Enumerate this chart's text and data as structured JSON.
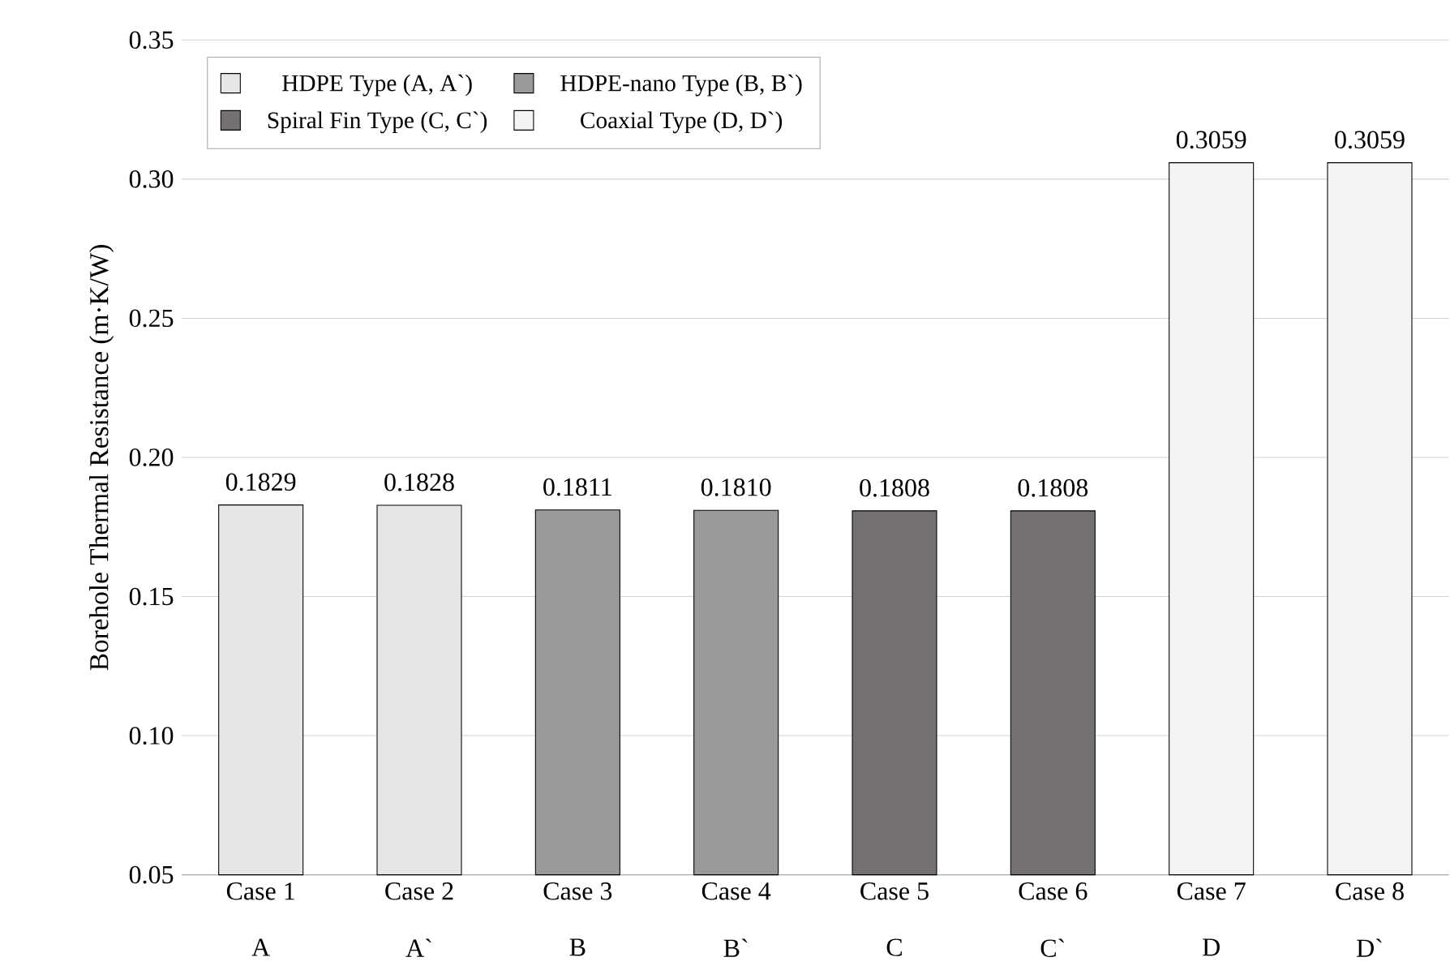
{
  "chart_data": {
    "type": "bar",
    "ylabel": "Borehole Thermal Resistance (m·K/W)",
    "categories": [
      "Case 1",
      "Case 2",
      "Case 3",
      "Case 4",
      "Case 5",
      "Case 6",
      "Case 7",
      "Case 8"
    ],
    "series": [
      {
        "name": "HDPE Type (A, A`)",
        "color": "#e6e6e6",
        "values": [
          0.1829,
          0.1828,
          null,
          null,
          null,
          null,
          null,
          null
        ],
        "value_labels": [
          "0.1829",
          "0.1828",
          null,
          null,
          null,
          null,
          null,
          null
        ]
      },
      {
        "name": "HDPE-nano Type (B, B`)",
        "color": "#9a9a9a",
        "values": [
          null,
          null,
          0.1811,
          0.181,
          null,
          null,
          null,
          null
        ],
        "value_labels": [
          null,
          null,
          "0.1811",
          "0.1810",
          null,
          null,
          null,
          null
        ]
      },
      {
        "name": "Spiral Fin Type (C, C`)",
        "color": "#767171",
        "values": [
          null,
          null,
          null,
          null,
          0.1808,
          0.1808,
          null,
          null
        ],
        "value_labels": [
          null,
          null,
          null,
          null,
          "0.1808",
          "0.1808",
          null,
          null
        ]
      },
      {
        "name": "Coaxial Type (D, D`)",
        "color": "#f4f4f4",
        "values": [
          null,
          null,
          null,
          null,
          null,
          null,
          0.3059,
          0.3059
        ],
        "value_labels": [
          null,
          null,
          null,
          null,
          null,
          null,
          "0.3059",
          "0.3059"
        ]
      }
    ],
    "ylim": [
      0.05,
      0.35
    ],
    "yticks": [
      {
        "value": 0.05,
        "label": "0.05"
      },
      {
        "value": 0.1,
        "label": "0.10"
      },
      {
        "value": 0.15,
        "label": "0.15"
      },
      {
        "value": 0.2,
        "label": "0.20"
      },
      {
        "value": 0.25,
        "label": "0.25"
      },
      {
        "value": 0.3,
        "label": "0.30"
      },
      {
        "value": 0.35,
        "label": "0.35"
      }
    ],
    "grid": "y",
    "legend": "top left",
    "annotations": [
      "A",
      "A`",
      "B",
      "B`",
      "C",
      "C`",
      "D",
      "D`"
    ]
  }
}
